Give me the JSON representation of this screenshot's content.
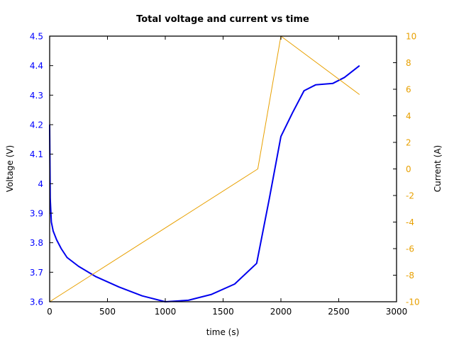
{
  "chart_data": {
    "type": "line",
    "title": "Total voltage and current vs time",
    "xlabel": "time (s)",
    "ylabel": "Voltage (V)",
    "y2label": "Current (A)",
    "xlim": [
      0,
      3000
    ],
    "ylim": [
      3.6,
      4.5
    ],
    "y2lim": [
      -10,
      10
    ],
    "xticks": [
      "0",
      "500",
      "1000",
      "1500",
      "2000",
      "2500",
      "3000"
    ],
    "yticks": [
      "3.6",
      "3.7",
      "3.8",
      "3.9",
      "4",
      "4.1",
      "4.2",
      "4.3",
      "4.4",
      "4.5"
    ],
    "y2ticks": [
      "-10",
      "-8",
      "-6",
      "-4",
      "-2",
      "0",
      "2",
      "4",
      "6",
      "8",
      "10"
    ],
    "grid": false,
    "legend": null,
    "colors": {
      "voltage": "#0000ee",
      "current": "#e8a000",
      "voltage_ticks": "#0000ff",
      "current_ticks": "#e8a000"
    },
    "series": [
      {
        "name": "Voltage (V)",
        "axis": "left",
        "x": [
          0,
          5,
          15,
          30,
          60,
          100,
          150,
          250,
          400,
          600,
          800,
          1000,
          1200,
          1400,
          1600,
          1790,
          1900,
          2000,
          2100,
          2200,
          2300,
          2450,
          2550,
          2680
        ],
        "y": [
          4.2,
          3.95,
          3.87,
          3.84,
          3.81,
          3.78,
          3.75,
          3.72,
          3.685,
          3.65,
          3.62,
          3.6,
          3.605,
          3.625,
          3.66,
          3.73,
          3.95,
          4.16,
          4.24,
          4.315,
          4.335,
          4.34,
          4.36,
          4.4
        ]
      },
      {
        "name": "Current (A)",
        "axis": "right",
        "x": [
          0,
          1800,
          2000,
          2680
        ],
        "y": [
          -10,
          0,
          10,
          5.6
        ]
      }
    ]
  }
}
